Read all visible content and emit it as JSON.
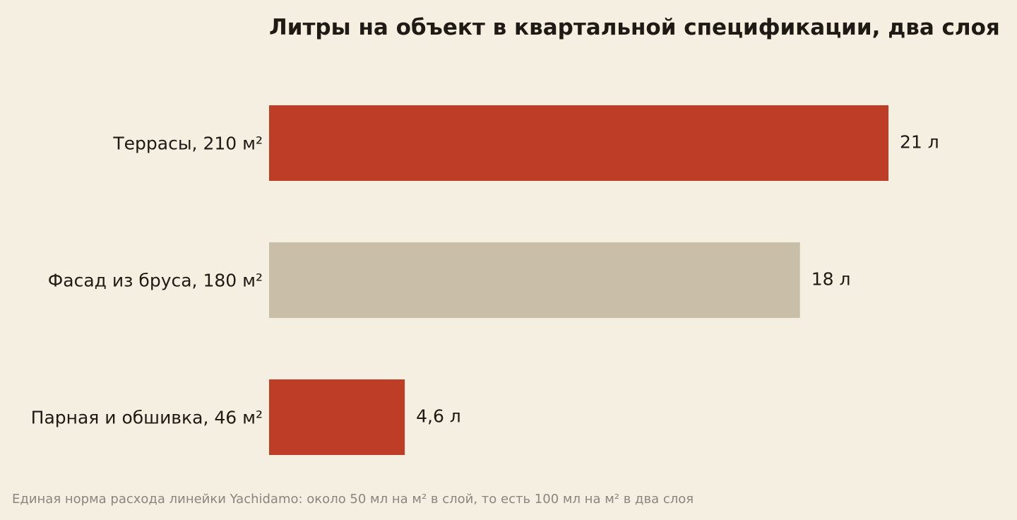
{
  "chart_data": {
    "type": "bar",
    "orientation": "horizontal",
    "title": "Литры на объект в квартальной спецификации, два слоя",
    "categories": [
      "Террасы, 210 м²",
      "Фасад из бруса, 180 м²",
      "Парная и обшивка, 46 м²"
    ],
    "values": [
      21,
      18,
      4.6
    ],
    "value_labels": [
      "21 л",
      "18 л",
      "4,6 л"
    ],
    "bar_colors": [
      "#bd3d27",
      "#c9bfa8",
      "#bd3d27"
    ],
    "xlim": [
      0,
      21
    ],
    "grid": false,
    "legend": "none",
    "footnote": "Единая норма расхода линейки Yachidamo: около 50 мл на м² в слой, то есть 100 мл на м² в два слоя"
  },
  "colors": {
    "background": "#f5efe2",
    "text": "#1f1a14",
    "muted": "#8c857a"
  }
}
